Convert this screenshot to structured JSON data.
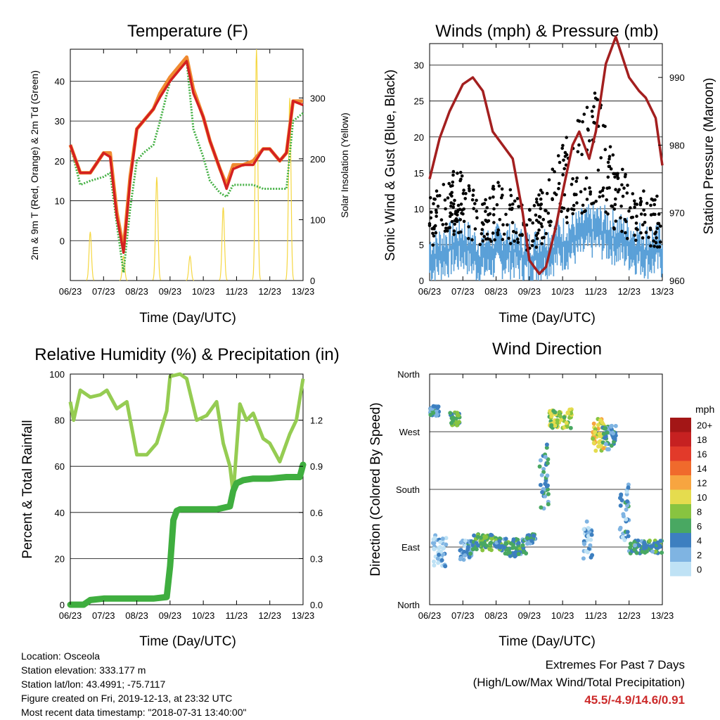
{
  "x_ticks": [
    "06/23",
    "07/23",
    "08/23",
    "09/23",
    "10/23",
    "11/23",
    "12/23",
    "13/23"
  ],
  "xlabel": "Time (Day/UTC)",
  "info": {
    "location": "Location: Osceola",
    "elevation": "Station elevation: 333.177 m",
    "latlon": "Station lat/lon: 43.4991; -75.7117",
    "created": "Figure created on Fri, 2019-12-13, at 23:32 UTC",
    "recent": "Most recent data timestamp: \"2018-07-31 13:40:00\""
  },
  "extremes": {
    "title": "Extremes For Past 7 Days",
    "subtitle": "(High/Low/Max Wind/Total Precipitation)",
    "values": "45.5/-4.9/14.6/0.91"
  },
  "chart_data": [
    {
      "type": "line",
      "title": "Temperature (F)",
      "ylabel": "2m & 9m T (Red, Orange) & 2m Td (Green)",
      "y2label": "Solar Insolation (Yellow)",
      "ylim": [
        -10,
        48
      ],
      "y2lim": [
        0,
        380
      ],
      "yticks": [
        0,
        10,
        20,
        30,
        40
      ],
      "y2ticks": [
        0,
        100,
        200,
        300
      ],
      "x": [
        6.0,
        6.3,
        6.6,
        7.0,
        7.2,
        7.4,
        7.6,
        7.8,
        8.0,
        8.2,
        8.5,
        8.7,
        9.0,
        9.3,
        9.5,
        9.7,
        10.0,
        10.2,
        10.5,
        10.7,
        10.9,
        11.2,
        11.5,
        11.8,
        12.0,
        12.3,
        12.5,
        12.7,
        13.0
      ],
      "series": [
        {
          "name": "2m T",
          "color": "#d42020",
          "values": [
            24,
            17,
            17,
            22,
            21,
            6,
            -3,
            15,
            28,
            30,
            33,
            36,
            40,
            43,
            45,
            37,
            31,
            25,
            18,
            13,
            18,
            19,
            19,
            23,
            23,
            20,
            22,
            35,
            34
          ]
        },
        {
          "name": "9m T",
          "color": "#f08a30",
          "values": [
            24,
            17,
            17,
            22,
            22,
            7,
            -2,
            16,
            28,
            30,
            33,
            37,
            41,
            44,
            46,
            38,
            31,
            25,
            18,
            14,
            19,
            19,
            20,
            23,
            23,
            20,
            22,
            35,
            35
          ]
        },
        {
          "name": "2m Td",
          "color": "#44b044",
          "values": [
            24,
            14,
            15,
            16,
            17,
            4,
            -8,
            8,
            20,
            22,
            24,
            30,
            40,
            43,
            45,
            28,
            21,
            15,
            12,
            11,
            14,
            14,
            14,
            13,
            13,
            13,
            13,
            30,
            32
          ]
        }
      ],
      "solar": {
        "name": "Solar Insolation",
        "color": "#f5d742",
        "peaks": [
          [
            6.6,
            80
          ],
          [
            7.6,
            40
          ],
          [
            8.6,
            170
          ],
          [
            9.6,
            40
          ],
          [
            10.6,
            120
          ],
          [
            11.6,
            380
          ],
          [
            12.6,
            300
          ]
        ]
      }
    },
    {
      "type": "scatter",
      "title": "Winds (mph) & Pressure (mb)",
      "ylabel": "Sonic Wind & Gust (Blue, Black)",
      "y2label": "Station Pressure (Maroon)",
      "ylim": [
        0,
        33
      ],
      "y2lim": [
        960,
        995
      ],
      "yticks": [
        0,
        5,
        10,
        15,
        20,
        25,
        30
      ],
      "y2ticks": [
        960,
        970,
        980,
        990
      ],
      "pressure": {
        "name": "Station Pressure",
        "color": "#a31f1f",
        "x": [
          6.0,
          6.3,
          6.6,
          7.0,
          7.3,
          7.6,
          7.9,
          8.2,
          8.5,
          8.8,
          9.0,
          9.3,
          9.5,
          9.8,
          10.0,
          10.3,
          10.5,
          10.8,
          11.0,
          11.3,
          11.6,
          11.8,
          12.0,
          12.3,
          12.5,
          12.8,
          13.0
        ],
        "values": [
          975,
          981,
          985,
          989,
          990,
          988,
          982,
          980,
          978,
          970,
          963,
          961,
          962,
          968,
          973,
          980,
          982,
          978,
          982,
          992,
          996,
          993,
          990,
          988,
          987,
          984,
          977
        ]
      },
      "wind_mean": [
        [
          6.0,
          4
        ],
        [
          6.5,
          5
        ],
        [
          7.0,
          6
        ],
        [
          7.5,
          4
        ],
        [
          8.0,
          5
        ],
        [
          8.5,
          5
        ],
        [
          9.0,
          4
        ],
        [
          9.5,
          5
        ],
        [
          10.0,
          6
        ],
        [
          10.5,
          7
        ],
        [
          11.0,
          8
        ],
        [
          11.5,
          7
        ],
        [
          12.0,
          6
        ],
        [
          12.5,
          5
        ],
        [
          13.0,
          5
        ]
      ],
      "wind_gust": [
        [
          6.0,
          10
        ],
        [
          6.5,
          13
        ],
        [
          7.0,
          15
        ],
        [
          7.5,
          9
        ],
        [
          8.0,
          12
        ],
        [
          8.5,
          11
        ],
        [
          9.0,
          9
        ],
        [
          9.5,
          12
        ],
        [
          10.0,
          17
        ],
        [
          10.5,
          20
        ],
        [
          11.0,
          24
        ],
        [
          11.5,
          16
        ],
        [
          12.0,
          12
        ],
        [
          12.5,
          11
        ],
        [
          13.0,
          10
        ]
      ]
    },
    {
      "type": "line",
      "title": "Relative Humidity (%) & Precipitation (in)",
      "ylabel": "Percent & Total Rainfall",
      "ylim": [
        0,
        100
      ],
      "y2lim": [
        0,
        1.5
      ],
      "yticks": [
        0,
        20,
        40,
        60,
        80,
        100
      ],
      "y2ticks": [
        "0.0",
        "0.3",
        "0.6",
        "0.9",
        "1.2"
      ],
      "series": [
        {
          "name": "Relative Humidity",
          "color": "#95cc52",
          "x": [
            6.0,
            6.1,
            6.3,
            6.6,
            6.9,
            7.1,
            7.4,
            7.7,
            8.0,
            8.3,
            8.6,
            8.9,
            9.0,
            9.3,
            9.5,
            9.8,
            10.1,
            10.4,
            10.6,
            10.8,
            10.9,
            11.1,
            11.3,
            11.5,
            11.8,
            12.0,
            12.3,
            12.6,
            12.8,
            13.0
          ],
          "values": [
            88,
            80,
            93,
            90,
            91,
            93,
            85,
            88,
            65,
            65,
            70,
            84,
            99,
            100,
            98,
            80,
            82,
            88,
            70,
            60,
            48,
            87,
            80,
            83,
            72,
            70,
            62,
            74,
            80,
            98
          ]
        },
        {
          "name": "Total Precipitation",
          "color": "#3fae3f",
          "x": [
            6.0,
            6.4,
            6.6,
            7.0,
            7.5,
            8.0,
            8.5,
            8.9,
            9.0,
            9.1,
            9.2,
            9.3,
            9.5,
            10.0,
            10.4,
            10.8,
            10.9,
            11.0,
            11.2,
            11.5,
            12.0,
            12.5,
            12.9,
            13.0
          ],
          "values": [
            0.0,
            0.0,
            0.03,
            0.04,
            0.04,
            0.04,
            0.04,
            0.05,
            0.25,
            0.55,
            0.61,
            0.62,
            0.62,
            0.62,
            0.62,
            0.64,
            0.74,
            0.79,
            0.81,
            0.82,
            0.82,
            0.83,
            0.83,
            0.91
          ]
        }
      ]
    },
    {
      "type": "scatter",
      "title": "Wind Direction",
      "ylabel": "Direction (Colored By Speed)",
      "ycats": [
        "North",
        "East",
        "South",
        "West",
        "North"
      ],
      "legend_title": "mph",
      "legend": [
        {
          "label": "20+",
          "color": "#a31616"
        },
        {
          "label": "18",
          "color": "#c62121"
        },
        {
          "label": "16",
          "color": "#e23a2a"
        },
        {
          "label": "14",
          "color": "#f06a2c"
        },
        {
          "label": "12",
          "color": "#f7a540"
        },
        {
          "label": "10",
          "color": "#e5dc4e"
        },
        {
          "label": "8",
          "color": "#88c440"
        },
        {
          "label": "6",
          "color": "#49a862"
        },
        {
          "label": "4",
          "color": "#3d7fc0"
        },
        {
          "label": "2",
          "color": "#7fb4e2"
        },
        {
          "label": "0",
          "color": "#bfe2f5"
        }
      ],
      "clusters": [
        {
          "x": [
            6.0,
            6.3
          ],
          "dir": [
            295,
            310
          ],
          "speed": 4
        },
        {
          "x": [
            6.1,
            6.5
          ],
          "dir": [
            60,
            110
          ],
          "speed": 1
        },
        {
          "x": [
            6.6,
            6.9
          ],
          "dir": [
            280,
            300
          ],
          "speed": 6
        },
        {
          "x": [
            6.9,
            7.3
          ],
          "dir": [
            70,
            100
          ],
          "speed": 3
        },
        {
          "x": [
            7.3,
            8.0
          ],
          "dir": [
            85,
            110
          ],
          "speed": 6
        },
        {
          "x": [
            8.0,
            8.9
          ],
          "dir": [
            75,
            105
          ],
          "speed": 5
        },
        {
          "x": [
            8.9,
            9.2
          ],
          "dir": [
            95,
            110
          ],
          "speed": 4
        },
        {
          "x": [
            9.3,
            9.6
          ],
          "dir": [
            150,
            250
          ],
          "speed": 4
        },
        {
          "x": [
            9.6,
            10.3
          ],
          "dir": [
            275,
            305
          ],
          "speed": 8
        },
        {
          "x": [
            10.6,
            10.9
          ],
          "dir": [
            70,
            130
          ],
          "speed": 2
        },
        {
          "x": [
            10.9,
            11.3
          ],
          "dir": [
            240,
            290
          ],
          "speed": 10
        },
        {
          "x": [
            11.2,
            11.6
          ],
          "dir": [
            240,
            280
          ],
          "speed": 4
        },
        {
          "x": [
            11.7,
            12.0
          ],
          "dir": [
            100,
            190
          ],
          "speed": 3
        },
        {
          "x": [
            12.0,
            13.0
          ],
          "dir": [
            80,
            100
          ],
          "speed": 5
        }
      ]
    }
  ]
}
